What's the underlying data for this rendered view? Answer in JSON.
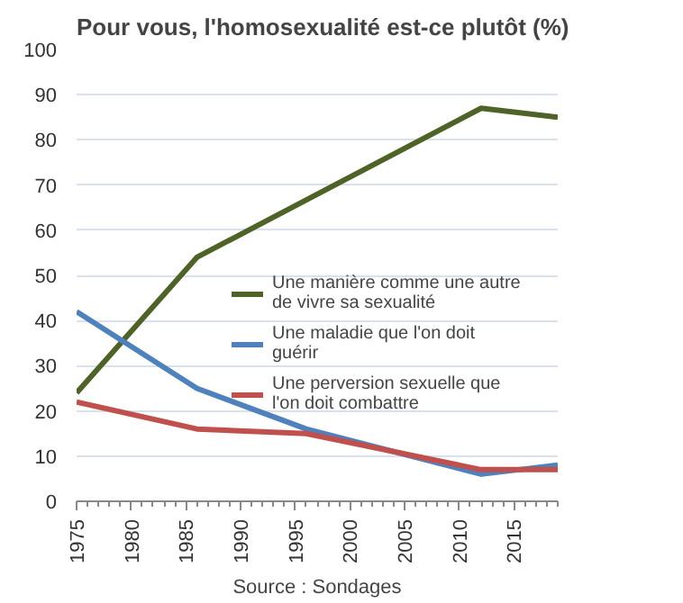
{
  "chart_data": {
    "type": "line",
    "title": "Pour vous, l'homosexualité est-ce plutôt (%)",
    "series": [
      {
        "name": "Une manière comme une autre de vivre sa sexualité",
        "color": "#4f6228",
        "x": [
          1975,
          1986,
          2012,
          2019
        ],
        "values": [
          24,
          54,
          87,
          85
        ]
      },
      {
        "name": "Une maladie que l'on doit guérir",
        "color": "#4f81bd",
        "x": [
          1975,
          1986,
          1996,
          2012,
          2019
        ],
        "values": [
          42,
          25,
          16,
          6,
          8
        ]
      },
      {
        "name": "Une perversion sexuelle que l'on doit combattre",
        "color": "#c0504d",
        "x": [
          1975,
          1986,
          1996,
          2012,
          2019
        ],
        "values": [
          22,
          16,
          15,
          7,
          7
        ]
      }
    ],
    "xlim": [
      1975,
      2019
    ],
    "xticks": [
      1975,
      1980,
      1985,
      1990,
      1995,
      2000,
      2005,
      2010,
      2015
    ],
    "ylim": [
      0,
      100
    ],
    "yticks": [
      0,
      10,
      20,
      30,
      40,
      50,
      60,
      70,
      80,
      90,
      100
    ],
    "grid": "y",
    "legend": "right",
    "line_style": "solid",
    "marker": "none",
    "annotations": [
      "Source : Sondages"
    ]
  }
}
